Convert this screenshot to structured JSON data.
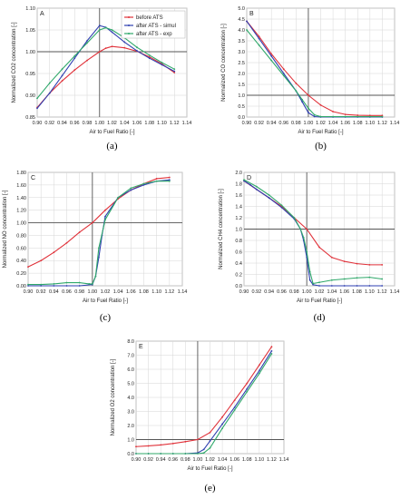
{
  "colors": {
    "before": "#e0323a",
    "simul": "#2f3fb0",
    "exp": "#2fa86a",
    "refline": "#555555",
    "grid": "#d6d6d6"
  },
  "legend": [
    {
      "label": "before ATS",
      "color": "#e0323a"
    },
    {
      "label": "after ATS - simul",
      "color": "#2f3fb0"
    },
    {
      "label": "after ATS - exp",
      "color": "#2fa86a"
    }
  ],
  "chart_data": [
    {
      "type": "line",
      "panel": "A",
      "caption": "(a)",
      "xlabel": "Air to Fuel Ratio [-]",
      "ylabel": "Normalized CO2 concentration [-]",
      "xlim": [
        0.9,
        1.14
      ],
      "ylim": [
        0.85,
        1.1
      ],
      "xticks": [
        "0.90",
        "0.92",
        "0.94",
        "0.96",
        "0.98",
        "1.00",
        "1.02",
        "1.04",
        "1.06",
        "1.08",
        "1.10",
        "1.12",
        "1.14"
      ],
      "yticks": [
        "0.85",
        "0.90",
        "0.95",
        "1.00",
        "1.05",
        "1.10"
      ],
      "legend_position": "top-right",
      "series": [
        {
          "name": "before ATS",
          "color": "#e0323a",
          "x": [
            0.9,
            0.92,
            0.94,
            0.96,
            0.98,
            1.0,
            1.01,
            1.02,
            1.04,
            1.06,
            1.08,
            1.1,
            1.12
          ],
          "y": [
            0.872,
            0.905,
            0.933,
            0.958,
            0.98,
            1.0,
            1.008,
            1.012,
            1.009,
            1.001,
            0.988,
            0.972,
            0.952
          ]
        },
        {
          "name": "after ATS - simul",
          "color": "#2f3fb0",
          "x": [
            0.9,
            0.92,
            0.94,
            0.96,
            0.98,
            1.0,
            1.01,
            1.02,
            1.04,
            1.06,
            1.08,
            1.1,
            1.12
          ],
          "y": [
            0.87,
            0.905,
            0.945,
            0.985,
            1.025,
            1.06,
            1.056,
            1.045,
            1.022,
            1.002,
            0.985,
            0.97,
            0.955
          ]
        },
        {
          "name": "after ATS - exp",
          "color": "#2fa86a",
          "x": [
            0.9,
            0.92,
            0.94,
            0.96,
            0.98,
            1.0,
            1.01,
            1.02,
            1.04,
            1.06,
            1.08,
            1.1,
            1.12
          ],
          "y": [
            0.893,
            0.928,
            0.96,
            0.99,
            1.02,
            1.05,
            1.055,
            1.05,
            1.032,
            1.01,
            0.992,
            0.975,
            0.96
          ]
        }
      ]
    },
    {
      "type": "line",
      "panel": "B",
      "caption": "(b)",
      "xlabel": "Air to Fuel Ratio [-]",
      "ylabel": "Normalized CO concentration [-]",
      "xlim": [
        0.9,
        1.14
      ],
      "ylim": [
        0.0,
        5.0
      ],
      "xticks": [
        "0.90",
        "0.92",
        "0.94",
        "0.96",
        "0.98",
        "1.00",
        "1.02",
        "1.04",
        "1.06",
        "1.08",
        "1.10",
        "1.12",
        "1.14"
      ],
      "yticks": [
        "0.0",
        "0.5",
        "1.0",
        "1.5",
        "2.0",
        "2.5",
        "3.0",
        "3.5",
        "4.0",
        "4.5",
        "5.0"
      ],
      "series": [
        {
          "name": "before ATS",
          "color": "#e0323a",
          "x": [
            0.9,
            0.92,
            0.94,
            0.96,
            0.98,
            1.0,
            1.02,
            1.04,
            1.06,
            1.08,
            1.1,
            1.12
          ],
          "y": [
            4.4,
            3.7,
            2.9,
            2.2,
            1.55,
            1.0,
            0.55,
            0.25,
            0.12,
            0.08,
            0.07,
            0.07
          ]
        },
        {
          "name": "after ATS - simul",
          "color": "#2f3fb0",
          "x": [
            0.9,
            0.92,
            0.94,
            0.96,
            0.98,
            0.99,
            1.0,
            1.01,
            1.02,
            1.04,
            1.06,
            1.08,
            1.1,
            1.12
          ],
          "y": [
            4.4,
            3.6,
            2.8,
            2.0,
            1.2,
            0.7,
            0.2,
            0.02,
            0.0,
            0.0,
            0.0,
            0.0,
            0.0,
            0.0
          ]
        },
        {
          "name": "after ATS - exp",
          "color": "#2fa86a",
          "x": [
            0.9,
            0.92,
            0.94,
            0.96,
            0.98,
            0.99,
            1.0,
            1.01,
            1.02,
            1.04,
            1.06,
            1.08,
            1.1,
            1.12
          ],
          "y": [
            4.0,
            3.3,
            2.6,
            1.9,
            1.2,
            0.8,
            0.4,
            0.1,
            0.02,
            0.02,
            0.02,
            0.02,
            0.02,
            0.02
          ]
        }
      ]
    },
    {
      "type": "line",
      "panel": "C",
      "caption": "(c)",
      "xlabel": "Air to Fuel Ratio [-]",
      "ylabel": "Normalized NO concentration [-]",
      "xlim": [
        0.9,
        1.14
      ],
      "ylim": [
        0.0,
        1.8
      ],
      "xticks": [
        "0.90",
        "0.92",
        "0.94",
        "0.96",
        "0.98",
        "1.00",
        "1.02",
        "1.04",
        "1.06",
        "1.08",
        "1.10",
        "1.12",
        "1.14"
      ],
      "yticks": [
        "0.00",
        "0.20",
        "0.40",
        "0.60",
        "0.80",
        "1.00",
        "1.20",
        "1.40",
        "1.60",
        "1.80"
      ],
      "series": [
        {
          "name": "before ATS",
          "color": "#e0323a",
          "x": [
            0.9,
            0.92,
            0.94,
            0.96,
            0.98,
            1.0,
            1.02,
            1.04,
            1.06,
            1.08,
            1.1,
            1.12
          ],
          "y": [
            0.3,
            0.4,
            0.53,
            0.68,
            0.85,
            1.0,
            1.2,
            1.38,
            1.52,
            1.62,
            1.7,
            1.72
          ]
        },
        {
          "name": "after ATS - simul",
          "color": "#2f3fb0",
          "x": [
            0.9,
            0.92,
            0.94,
            0.96,
            0.98,
            1.0,
            1.005,
            1.01,
            1.015,
            1.02,
            1.04,
            1.06,
            1.08,
            1.1,
            1.12
          ],
          "y": [
            0.0,
            0.0,
            0.0,
            0.0,
            0.0,
            0.02,
            0.15,
            0.45,
            0.8,
            1.1,
            1.4,
            1.52,
            1.6,
            1.66,
            1.68
          ]
        },
        {
          "name": "after ATS - exp",
          "color": "#2fa86a",
          "x": [
            0.9,
            0.92,
            0.94,
            0.96,
            0.98,
            0.995,
            1.0,
            1.005,
            1.01,
            1.02,
            1.04,
            1.06,
            1.08,
            1.1,
            1.12
          ],
          "y": [
            0.02,
            0.02,
            0.03,
            0.05,
            0.05,
            0.03,
            0.03,
            0.15,
            0.6,
            1.05,
            1.4,
            1.55,
            1.62,
            1.66,
            1.66
          ]
        }
      ]
    },
    {
      "type": "line",
      "panel": "D",
      "caption": "(d)",
      "xlabel": "Air to Fuel Ratio [-]",
      "ylabel": "Normalized CH4 concentration [-]",
      "xlim": [
        0.9,
        1.14
      ],
      "ylim": [
        0.0,
        2.0
      ],
      "xticks": [
        "0.90",
        "0.92",
        "0.94",
        "0.96",
        "0.98",
        "1.00",
        "1.02",
        "1.04",
        "1.06",
        "1.08",
        "1.10",
        "1.12",
        "1.14"
      ],
      "yticks": [
        "0.0",
        "0.2",
        "0.4",
        "0.6",
        "0.8",
        "1.0",
        "1.2",
        "1.4",
        "1.6",
        "1.8",
        "2.0"
      ],
      "series": [
        {
          "name": "before ATS",
          "color": "#e0323a",
          "x": [
            0.9,
            0.92,
            0.94,
            0.96,
            0.98,
            1.0,
            1.02,
            1.04,
            1.06,
            1.08,
            1.1,
            1.12
          ],
          "y": [
            1.85,
            1.7,
            1.55,
            1.4,
            1.2,
            1.0,
            0.68,
            0.5,
            0.43,
            0.39,
            0.37,
            0.37
          ]
        },
        {
          "name": "after ATS - simul",
          "color": "#2f3fb0",
          "x": [
            0.9,
            0.91,
            0.92,
            0.94,
            0.96,
            0.98,
            0.99,
            0.995,
            1.0,
            1.005,
            1.01,
            1.02,
            1.04,
            1.06,
            1.08,
            1.1,
            1.12
          ],
          "y": [
            1.85,
            1.78,
            1.7,
            1.55,
            1.38,
            1.18,
            1.0,
            0.8,
            0.5,
            0.1,
            0.02,
            0.0,
            0.0,
            0.0,
            0.0,
            0.0,
            0.0
          ]
        },
        {
          "name": "after ATS - exp",
          "color": "#2fa86a",
          "x": [
            0.9,
            0.92,
            0.94,
            0.96,
            0.98,
            0.99,
            0.995,
            1.0,
            1.005,
            1.01,
            1.02,
            1.04,
            1.06,
            1.08,
            1.1,
            1.12
          ],
          "y": [
            1.87,
            1.75,
            1.6,
            1.42,
            1.2,
            1.0,
            0.85,
            0.6,
            0.25,
            0.04,
            0.06,
            0.1,
            0.12,
            0.14,
            0.15,
            0.12
          ]
        }
      ]
    },
    {
      "type": "line",
      "panel": "E",
      "caption": "(e)",
      "xlabel": "Air to Fuel Ratio [-]",
      "ylabel": "Normalized O2 concentration [-]",
      "xlim": [
        0.9,
        1.14
      ],
      "ylim": [
        0.0,
        8.0
      ],
      "xticks": [
        "0.90",
        "0.92",
        "0.94",
        "0.96",
        "0.98",
        "1.00",
        "1.02",
        "1.04",
        "1.06",
        "1.08",
        "1.10",
        "1.12",
        "1.14"
      ],
      "yticks": [
        "0.0",
        "1.0",
        "2.0",
        "3.0",
        "4.0",
        "5.0",
        "6.0",
        "7.0",
        "8.0"
      ],
      "series": [
        {
          "name": "before ATS",
          "color": "#e0323a",
          "x": [
            0.9,
            0.92,
            0.94,
            0.96,
            0.98,
            1.0,
            1.02,
            1.04,
            1.06,
            1.08,
            1.1,
            1.12
          ],
          "y": [
            0.5,
            0.55,
            0.62,
            0.72,
            0.85,
            1.0,
            1.5,
            2.6,
            3.8,
            5.0,
            6.3,
            7.6
          ]
        },
        {
          "name": "after ATS - simul",
          "color": "#2f3fb0",
          "x": [
            0.9,
            0.92,
            0.94,
            0.96,
            0.98,
            1.0,
            1.01,
            1.02,
            1.04,
            1.06,
            1.08,
            1.1,
            1.12
          ],
          "y": [
            0.0,
            0.0,
            0.0,
            0.0,
            0.0,
            0.05,
            0.3,
            0.9,
            2.1,
            3.3,
            4.6,
            5.9,
            7.3
          ]
        },
        {
          "name": "after ATS - exp",
          "color": "#2fa86a",
          "x": [
            0.9,
            0.92,
            0.94,
            0.96,
            0.98,
            1.0,
            1.01,
            1.02,
            1.04,
            1.06,
            1.08,
            1.1,
            1.12
          ],
          "y": [
            0.0,
            0.0,
            0.0,
            0.0,
            0.0,
            0.0,
            0.05,
            0.4,
            1.8,
            3.1,
            4.4,
            5.7,
            7.1
          ]
        }
      ]
    }
  ]
}
